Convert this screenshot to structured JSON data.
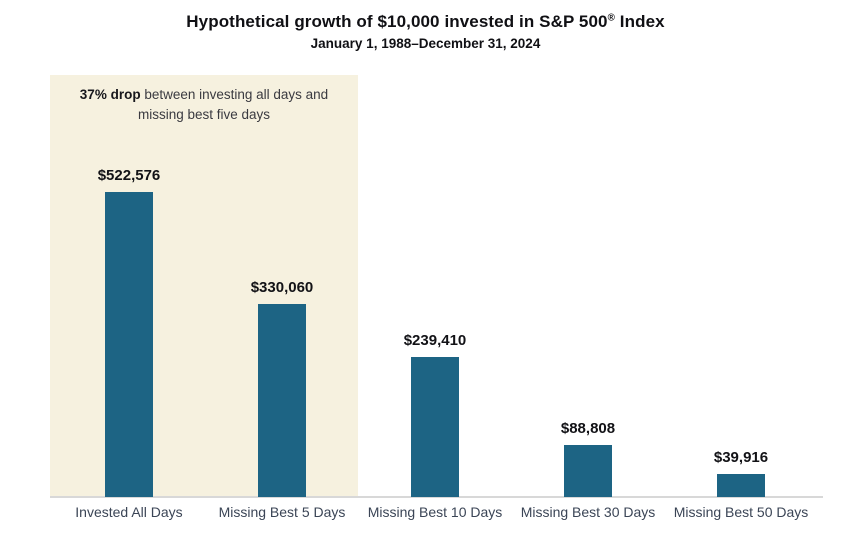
{
  "header": {
    "title_pre": "Hypothetical growth of $10,000 invested in S&P 500",
    "title_reg": "®",
    "title_post": " Index",
    "subtitle": "January 1, 1988–December 31, 2024"
  },
  "chart_data": {
    "type": "bar",
    "title": "Hypothetical growth of $10,000 invested in S&P 500® Index",
    "subtitle": "January 1, 1988–December 31, 2024",
    "categories": [
      "Invested All Days",
      "Missing Best 5 Days",
      "Missing Best 10 Days",
      "Missing Best 30 Days",
      "Missing Best 50 Days"
    ],
    "values": [
      522576,
      330060,
      239410,
      88808,
      39916
    ],
    "value_labels": [
      "$522,576",
      "$330,060",
      "$239,410",
      "$88,808",
      "$39,916"
    ],
    "ylim": [
      0,
      560000
    ],
    "xlabel": "",
    "ylabel": "",
    "grid": false,
    "y_axis_visible": false,
    "legend": "none",
    "bar_color": "#1d6484",
    "highlight_color": "#f6f1df",
    "axis_line_color": "#d8d8d8",
    "annotation": {
      "bold": "37% drop",
      "rest": " between investing all days and missing best five days",
      "highlight_span": "first two bars"
    }
  }
}
